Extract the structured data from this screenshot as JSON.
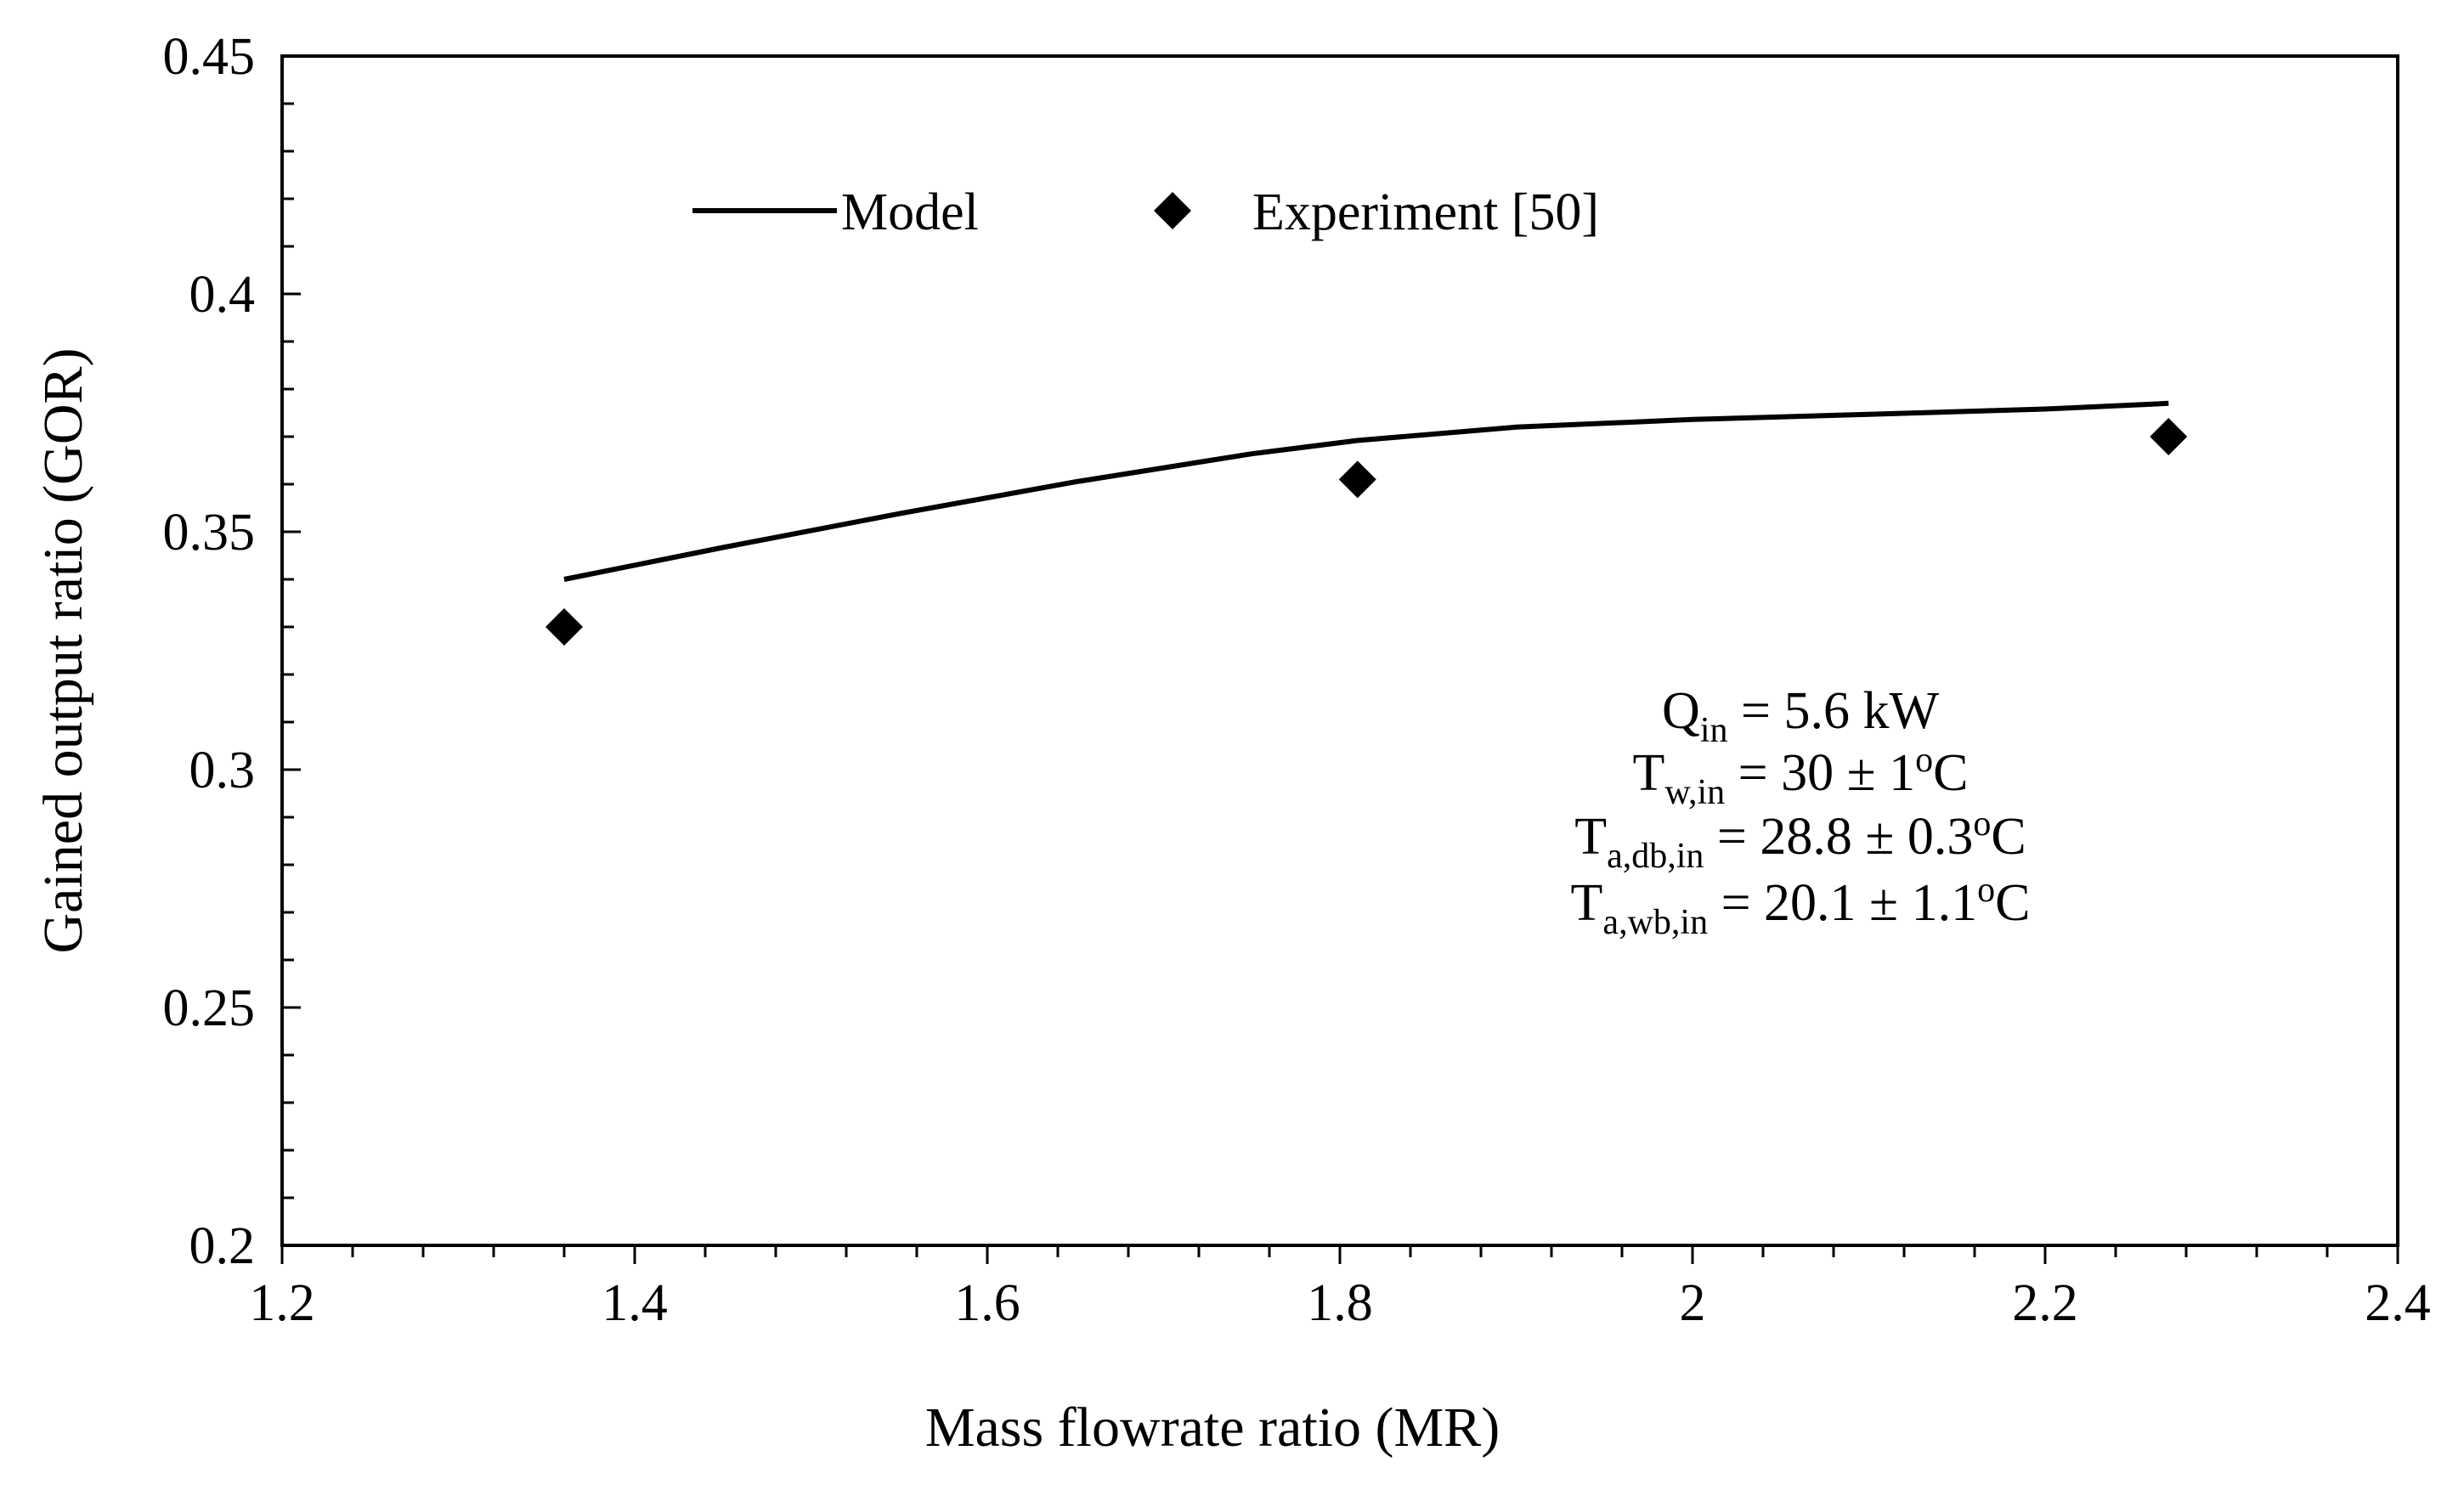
{
  "chart_data": {
    "type": "line",
    "title": "",
    "xlabel": "Mass flowrate ratio (MR)",
    "ylabel": "Gained output ratio (GOR)",
    "xlim": [
      1.2,
      2.4
    ],
    "ylim": [
      0.2,
      0.45
    ],
    "x_ticks": [
      "1.2",
      "1.4",
      "1.6",
      "1.8",
      "2",
      "2.2",
      "2.4"
    ],
    "y_ticks": [
      "0.2",
      "0.25",
      "0.3",
      "0.35",
      "0.4",
      "0.45"
    ],
    "x_minor_step": 0.04,
    "y_minor_step": 0.01,
    "grid": false,
    "legend_position": "top",
    "series": [
      {
        "name": "Model",
        "style": "line",
        "color": "#000000",
        "x": [
          1.36,
          1.45,
          1.55,
          1.65,
          1.75,
          1.81,
          1.9,
          2.0,
          2.1,
          2.2,
          2.27
        ],
        "y": [
          0.34,
          0.3467,
          0.3538,
          0.3605,
          0.3664,
          0.3692,
          0.372,
          0.3736,
          0.3747,
          0.3758,
          0.377
        ]
      },
      {
        "name": "Experiment [50]",
        "style": "marker",
        "marker": "diamond",
        "color": "#000000",
        "x": [
          1.36,
          1.81,
          2.27
        ],
        "y": [
          0.33,
          0.361,
          0.37
        ]
      }
    ],
    "annotation": [
      {
        "main": "Q",
        "sub": "in",
        "rest": " = 5.6 kW"
      },
      {
        "main": "T",
        "sub": "w,in",
        "rest": " = 30 ± 1",
        "sup": "o",
        "tail": "C"
      },
      {
        "main": "T",
        "sub": "a,db,in",
        "rest": " = 28.8 ± 0.3",
        "sup": "o",
        "tail": "C"
      },
      {
        "main": "T",
        "sub": "a,wb,in",
        "rest": " = 20.1 ± 1.1",
        "sup": "o",
        "tail": "C"
      }
    ]
  }
}
